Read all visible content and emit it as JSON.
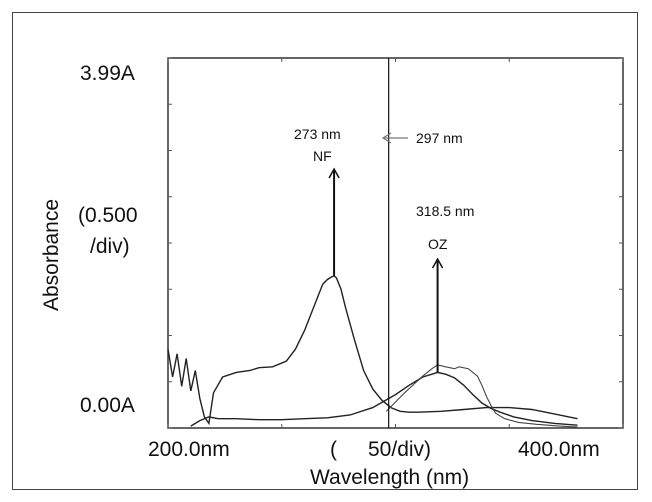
{
  "chart_data": {
    "type": "line",
    "title": "",
    "xlabel": "Wavelength (nm)",
    "ylabel": "Absorbance",
    "ylabel_scale": [
      "(0.500",
      "/div)"
    ],
    "x_tick_labels": [
      "200.0nm",
      "(",
      "50/div)",
      "400.0nm"
    ],
    "y_tick_labels": [
      "3.99A",
      "0.00A"
    ],
    "xlim": [
      200,
      400
    ],
    "ylim": [
      0,
      3.99
    ],
    "grid": false,
    "series": [
      {
        "name": "NF",
        "x": [
          200,
          202,
          204,
          206,
          208,
          210,
          212,
          214,
          216,
          218,
          220,
          224,
          230,
          236,
          240,
          246,
          252,
          256,
          260,
          264,
          268,
          270,
          272,
          273,
          274,
          276,
          278,
          282,
          286,
          290,
          294,
          298,
          302,
          306,
          310,
          320,
          330,
          340,
          350,
          360,
          370,
          380
        ],
        "y": [
          0.85,
          0.55,
          0.8,
          0.45,
          0.75,
          0.4,
          0.62,
          0.32,
          0.12,
          0.05,
          0.38,
          0.55,
          0.6,
          0.62,
          0.65,
          0.66,
          0.72,
          0.85,
          1.05,
          1.3,
          1.55,
          1.6,
          1.63,
          1.64,
          1.62,
          1.5,
          1.3,
          0.95,
          0.62,
          0.42,
          0.3,
          0.22,
          0.18,
          0.17,
          0.17,
          0.18,
          0.2,
          0.22,
          0.22,
          0.2,
          0.15,
          0.1
        ]
      },
      {
        "name": "OZ",
        "x": [
          210,
          214,
          218,
          222,
          230,
          240,
          250,
          260,
          270,
          280,
          290,
          300,
          306,
          312,
          316,
          318.5,
          322,
          326,
          330,
          334,
          338,
          342,
          346,
          352,
          360,
          370,
          380
        ],
        "y": [
          0.02,
          0.08,
          0.12,
          0.1,
          0.1,
          0.09,
          0.09,
          0.1,
          0.11,
          0.14,
          0.22,
          0.36,
          0.46,
          0.55,
          0.58,
          0.6,
          0.58,
          0.54,
          0.46,
          0.36,
          0.27,
          0.21,
          0.17,
          0.12,
          0.08,
          0.05,
          0.03
        ]
      },
      {
        "name": "",
        "x": [
          296,
          300,
          304,
          308,
          312,
          316,
          318.5,
          322,
          326,
          328,
          332,
          336,
          338,
          340,
          342,
          344,
          348,
          354,
          362,
          372,
          380
        ],
        "y": [
          0.18,
          0.28,
          0.38,
          0.47,
          0.56,
          0.64,
          0.68,
          0.66,
          0.64,
          0.66,
          0.64,
          0.56,
          0.46,
          0.34,
          0.24,
          0.16,
          0.1,
          0.06,
          0.04,
          0.02,
          0.01
        ]
      }
    ],
    "annotations": {
      "nf_wavelength": "273 nm",
      "nf_label": "NF",
      "isosbestic_label": "297 nm",
      "oz_wavelength": "318.5 nm",
      "oz_label": "OZ"
    },
    "marker_lines": {
      "nf_peak_x": 273,
      "isosbestic_x": 297,
      "oz_peak_x": 318.5
    }
  }
}
